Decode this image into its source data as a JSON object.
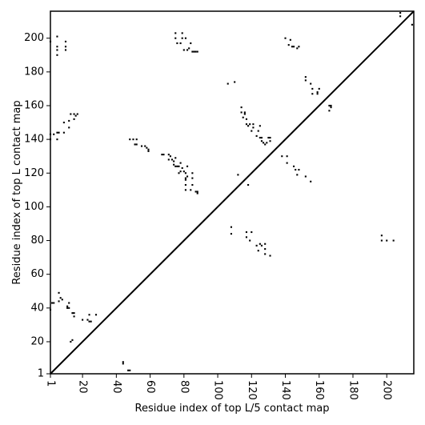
{
  "chart_data": {
    "type": "heatmap",
    "title": "",
    "xlabel": "Residue index of top L/5 contact map",
    "ylabel": "Residue index of top L contact map",
    "xlim": [
      1,
      216
    ],
    "ylim": [
      1,
      216
    ],
    "x_ticks": [
      1,
      20,
      40,
      60,
      80,
      100,
      120,
      140,
      160,
      180,
      200
    ],
    "y_ticks": [
      1,
      20,
      40,
      60,
      80,
      100,
      120,
      140,
      160,
      180,
      200
    ],
    "x_tick_rotation": -90,
    "grid": false,
    "legend": "none",
    "diagonal": true,
    "cell_color": "#000000",
    "lower_triangle_contacts": [
      [
        44,
        7
      ],
      [
        44,
        8
      ],
      [
        47,
        3
      ],
      [
        48,
        3
      ],
      [
        13,
        20
      ],
      [
        14,
        21
      ],
      [
        20,
        33
      ],
      [
        23,
        33
      ],
      [
        24,
        32
      ],
      [
        25,
        32
      ],
      [
        24,
        36
      ],
      [
        28,
        36
      ],
      [
        1,
        39
      ],
      [
        2,
        43
      ],
      [
        3,
        43
      ],
      [
        6,
        44
      ],
      [
        6,
        49
      ],
      [
        7,
        46
      ],
      [
        8,
        45
      ],
      [
        11,
        40
      ],
      [
        11,
        41
      ],
      [
        12,
        40
      ],
      [
        12,
        43
      ],
      [
        14,
        37
      ],
      [
        15,
        37
      ],
      [
        15,
        35
      ],
      [
        108,
        84
      ],
      [
        108,
        88
      ],
      [
        117,
        82
      ],
      [
        117,
        85
      ],
      [
        119,
        80
      ],
      [
        120,
        85
      ],
      [
        123,
        77
      ],
      [
        124,
        74
      ],
      [
        125,
        78
      ],
      [
        126,
        77
      ],
      [
        128,
        72
      ],
      [
        128,
        75
      ],
      [
        128,
        78
      ],
      [
        131,
        71
      ],
      [
        197,
        80
      ],
      [
        197,
        83
      ],
      [
        200,
        80
      ],
      [
        204,
        80
      ]
    ],
    "upper_triangle_contacts": [
      [
        1,
        198
      ],
      [
        5,
        190
      ],
      [
        5,
        193
      ],
      [
        5,
        195
      ],
      [
        5,
        201
      ],
      [
        10,
        193
      ],
      [
        10,
        195
      ],
      [
        10,
        198
      ],
      [
        1,
        140
      ],
      [
        1,
        143
      ],
      [
        3,
        143
      ],
      [
        5,
        140
      ],
      [
        5,
        144
      ],
      [
        6,
        144
      ],
      [
        9,
        144
      ],
      [
        9,
        150
      ],
      [
        12,
        147
      ],
      [
        12,
        151
      ],
      [
        13,
        155
      ],
      [
        15,
        152
      ],
      [
        15,
        155
      ],
      [
        16,
        154
      ],
      [
        17,
        155
      ],
      [
        48,
        140
      ],
      [
        50,
        140
      ],
      [
        51,
        137
      ],
      [
        52,
        140
      ],
      [
        52,
        137
      ],
      [
        55,
        136
      ],
      [
        57,
        136
      ],
      [
        58,
        135
      ],
      [
        59,
        134
      ],
      [
        59,
        133
      ],
      [
        67,
        131
      ],
      [
        68,
        131
      ],
      [
        71,
        128
      ],
      [
        71,
        131
      ],
      [
        72,
        130
      ],
      [
        73,
        128
      ],
      [
        74,
        125
      ],
      [
        74,
        127
      ],
      [
        75,
        124
      ],
      [
        75,
        129
      ],
      [
        76,
        124
      ],
      [
        77,
        120
      ],
      [
        77,
        124
      ],
      [
        78,
        121
      ],
      [
        78,
        126
      ],
      [
        79,
        123
      ],
      [
        80,
        121
      ],
      [
        81,
        116
      ],
      [
        81,
        117
      ],
      [
        81,
        120
      ],
      [
        82,
        118
      ],
      [
        82,
        124
      ],
      [
        81,
        110
      ],
      [
        81,
        113
      ],
      [
        84,
        110
      ],
      [
        85,
        117
      ],
      [
        85,
        120
      ],
      [
        85,
        113
      ],
      [
        87,
        109
      ],
      [
        88,
        109
      ],
      [
        88,
        108
      ],
      [
        75,
        200
      ],
      [
        75,
        203
      ],
      [
        76,
        197
      ],
      [
        78,
        197
      ],
      [
        79,
        200
      ],
      [
        79,
        203
      ],
      [
        80,
        193
      ],
      [
        81,
        200
      ],
      [
        82,
        193
      ],
      [
        83,
        194
      ],
      [
        84,
        197
      ],
      [
        85,
        192
      ],
      [
        86,
        192
      ],
      [
        87,
        192
      ],
      [
        88,
        192
      ],
      [
        106,
        173
      ],
      [
        110,
        174
      ],
      [
        112,
        119
      ],
      [
        114,
        156
      ],
      [
        114,
        159
      ],
      [
        115,
        153
      ],
      [
        116,
        155
      ],
      [
        116,
        156
      ],
      [
        117,
        149
      ],
      [
        117,
        152
      ],
      [
        118,
        113
      ],
      [
        118,
        148
      ],
      [
        119,
        149
      ],
      [
        120,
        145
      ],
      [
        121,
        149
      ],
      [
        121,
        147
      ],
      [
        123,
        142
      ],
      [
        124,
        145
      ],
      [
        125,
        141
      ],
      [
        125,
        148
      ],
      [
        126,
        139
      ],
      [
        126,
        141
      ],
      [
        127,
        138
      ],
      [
        128,
        137
      ],
      [
        129,
        138
      ],
      [
        130,
        141
      ],
      [
        131,
        139
      ],
      [
        131,
        141
      ],
      [
        138,
        130
      ],
      [
        140,
        200
      ],
      [
        141,
        126
      ],
      [
        141,
        130
      ],
      [
        142,
        196
      ],
      [
        143,
        199
      ],
      [
        144,
        195
      ],
      [
        145,
        124
      ],
      [
        145,
        195
      ],
      [
        146,
        122
      ],
      [
        147,
        119
      ],
      [
        147,
        194
      ],
      [
        148,
        122
      ],
      [
        148,
        195
      ],
      [
        152,
        118
      ],
      [
        152,
        175
      ],
      [
        152,
        177
      ],
      [
        155,
        115
      ],
      [
        155,
        173
      ],
      [
        156,
        167
      ],
      [
        156,
        170
      ],
      [
        159,
        167
      ],
      [
        159,
        168
      ],
      [
        160,
        170
      ],
      [
        166,
        157
      ],
      [
        166,
        160
      ],
      [
        167,
        160
      ],
      [
        167,
        159
      ],
      [
        208,
        213
      ],
      [
        208,
        215
      ],
      [
        215,
        208
      ]
    ]
  }
}
